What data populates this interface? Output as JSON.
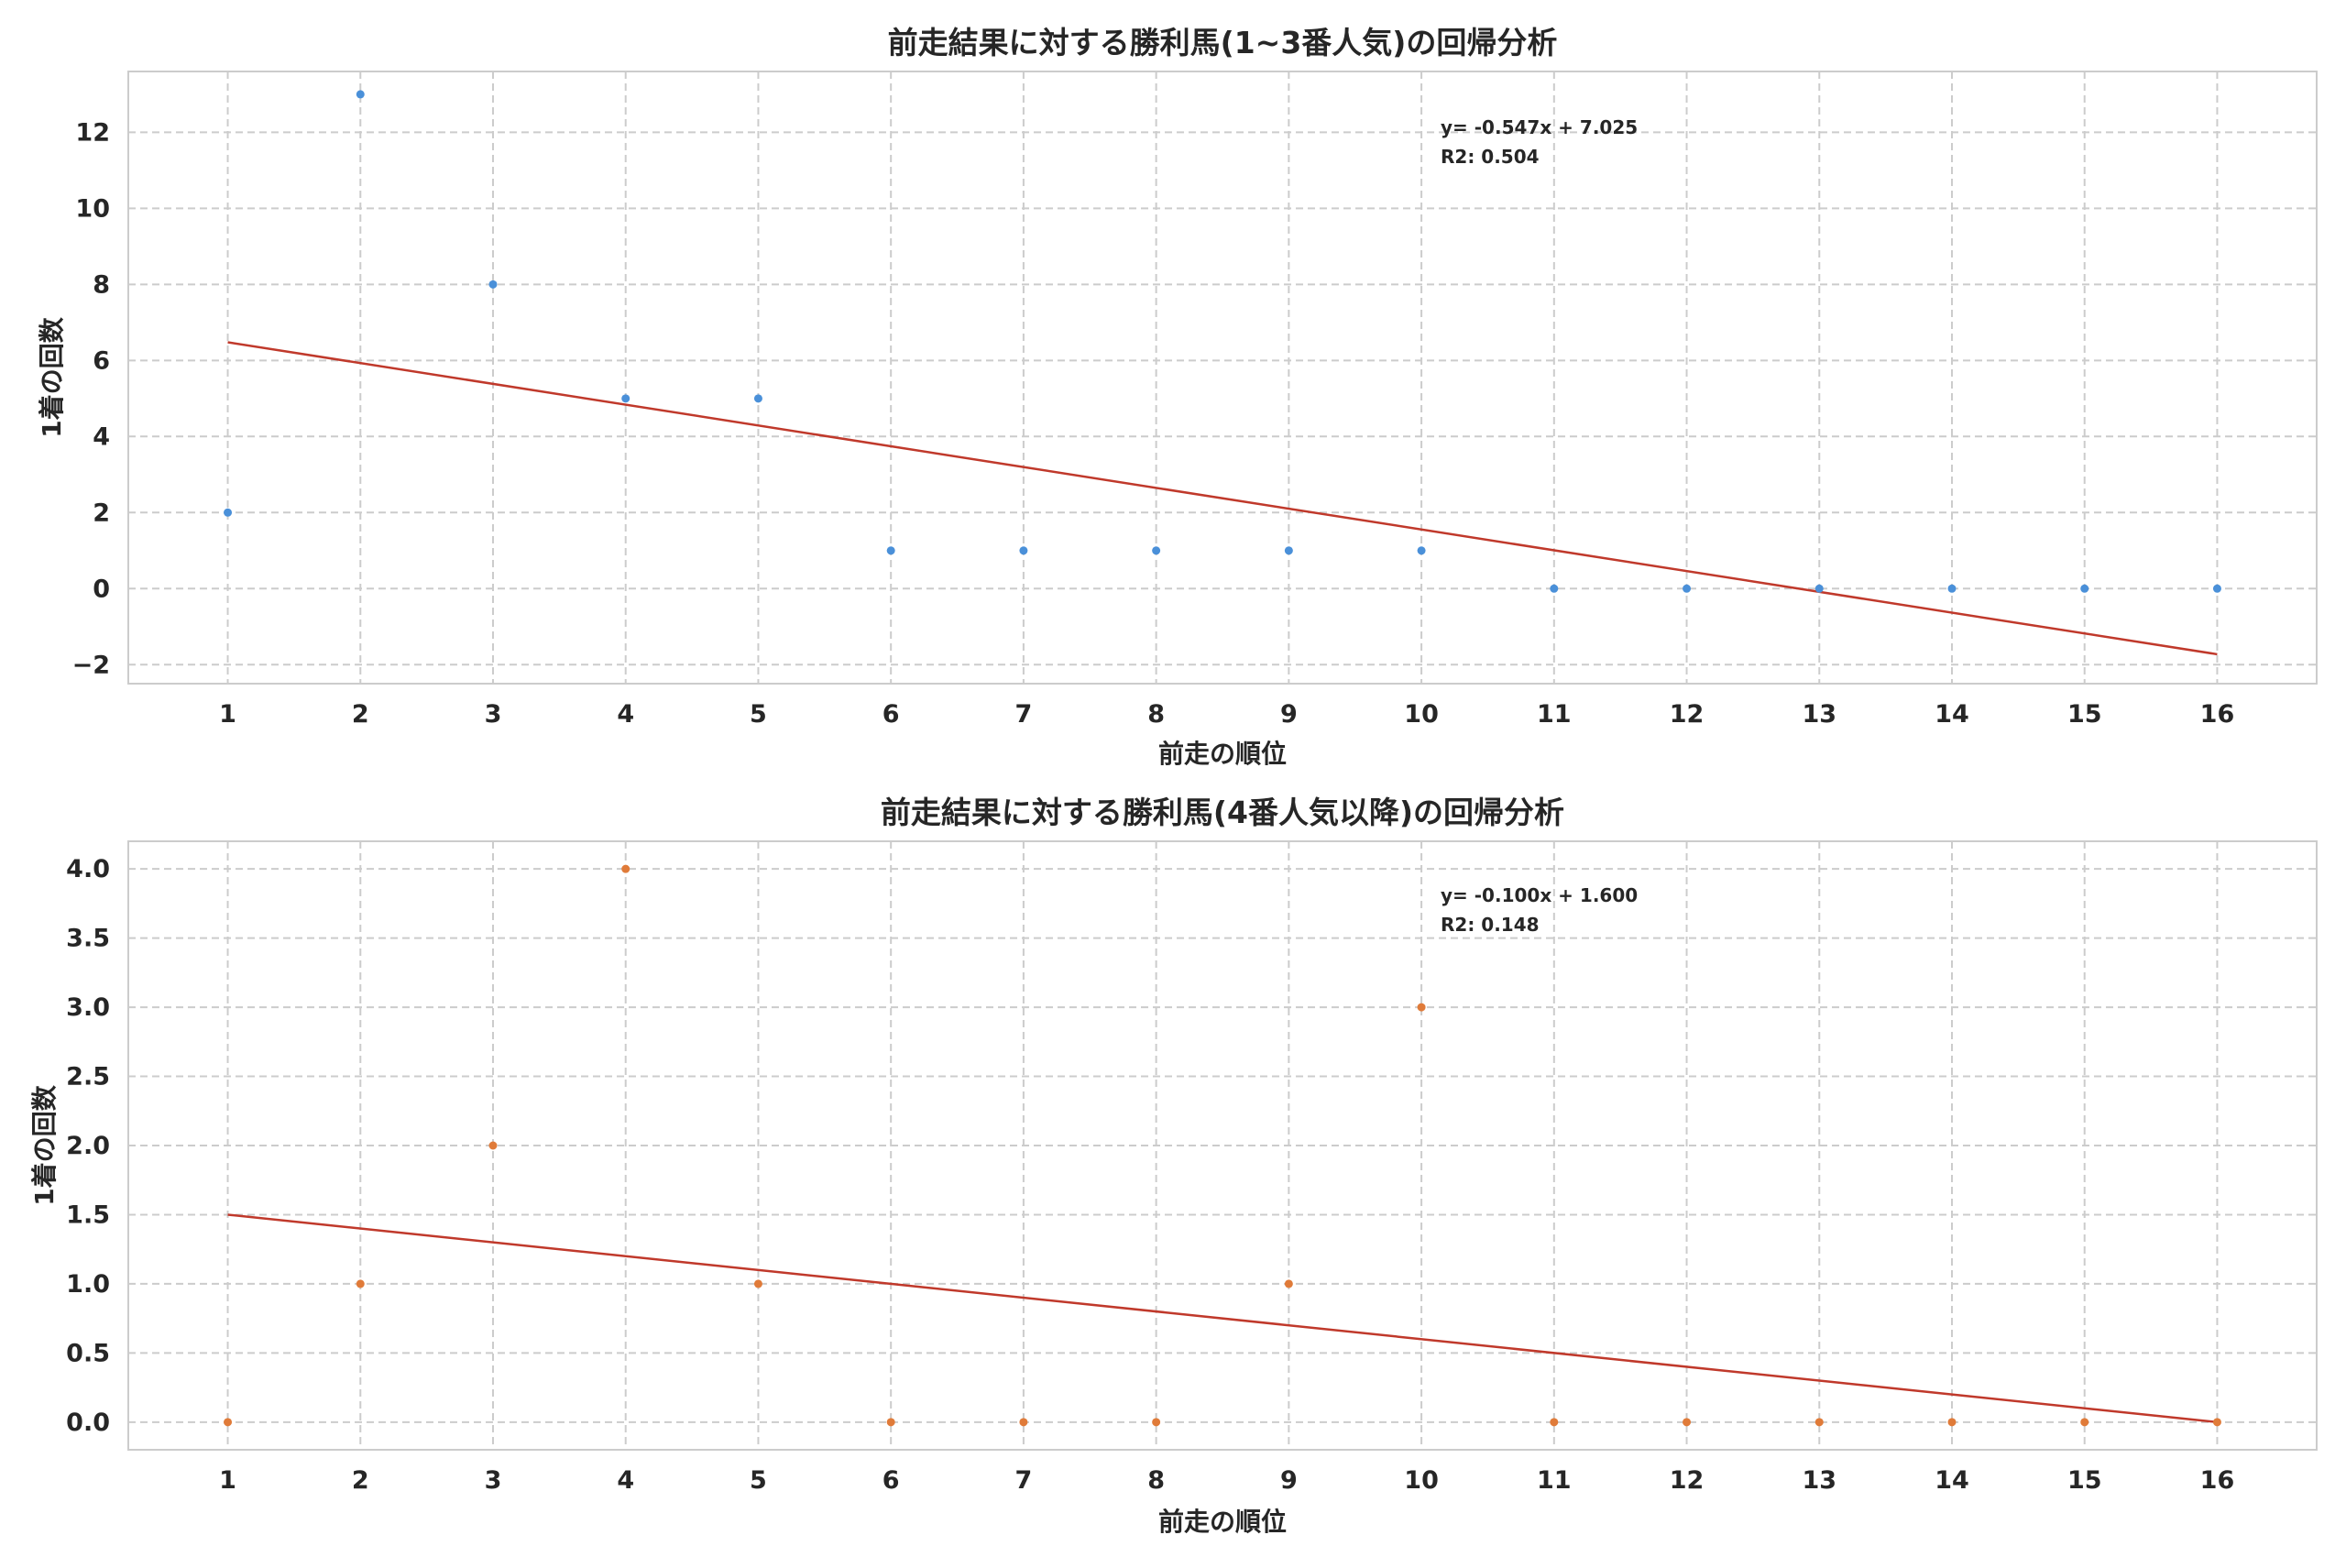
{
  "chart_data": [
    {
      "type": "scatter",
      "title": "前走結果に対する勝利馬(1~3番人気)の回帰分析",
      "xlabel": "前走の順位",
      "ylabel": "1着の回数",
      "x": [
        1,
        2,
        3,
        4,
        5,
        6,
        7,
        8,
        9,
        10,
        11,
        12,
        13,
        14,
        15,
        16
      ],
      "series": [
        {
          "values": [
            2,
            13,
            8,
            5,
            5,
            1,
            1,
            1,
            1,
            1,
            0,
            0,
            0,
            0,
            0,
            0
          ],
          "color": "#4a90d9"
        }
      ],
      "regression": {
        "slope": -0.547,
        "intercept": 7.025,
        "color": "#c0392b"
      },
      "annotation": [
        "y= -0.547x + 7.025",
        "R2: 0.504"
      ],
      "xticks": [
        "1",
        "2",
        "3",
        "4",
        "5",
        "6",
        "7",
        "8",
        "9",
        "10",
        "11",
        "12",
        "13",
        "14",
        "15",
        "16"
      ],
      "yticks": [
        "−2",
        "0",
        "2",
        "4",
        "6",
        "8",
        "10",
        "12"
      ],
      "ytick_values": [
        -2,
        0,
        2,
        4,
        6,
        8,
        10,
        12
      ],
      "xlim": [
        0.25,
        16.75
      ],
      "ylim": [
        -2.5,
        13.6
      ],
      "grid": true
    },
    {
      "type": "scatter",
      "title": "前走結果に対する勝利馬(4番人気以降)の回帰分析",
      "xlabel": "前走の順位",
      "ylabel": "1着の回数",
      "x": [
        1,
        2,
        3,
        4,
        5,
        6,
        7,
        8,
        9,
        10,
        11,
        12,
        13,
        14,
        15,
        16
      ],
      "series": [
        {
          "values": [
            0,
            1,
            2,
            4,
            1,
            0,
            0,
            0,
            1,
            3,
            0,
            0,
            0,
            0,
            0,
            0
          ],
          "color": "#e07b39"
        }
      ],
      "regression": {
        "slope": -0.1,
        "intercept": 1.6,
        "color": "#c0392b"
      },
      "annotation": [
        "y= -0.100x + 1.600",
        "R2: 0.148"
      ],
      "xticks": [
        "1",
        "2",
        "3",
        "4",
        "5",
        "6",
        "7",
        "8",
        "9",
        "10",
        "11",
        "12",
        "13",
        "14",
        "15",
        "16"
      ],
      "yticks": [
        "0.0",
        "0.5",
        "1.0",
        "1.5",
        "2.0",
        "2.5",
        "3.0",
        "3.5",
        "4.0"
      ],
      "ytick_values": [
        0,
        0.5,
        1,
        1.5,
        2,
        2.5,
        3,
        3.5,
        4
      ],
      "xlim": [
        0.25,
        16.75
      ],
      "ylim": [
        -0.2,
        4.2
      ],
      "grid": true
    }
  ]
}
